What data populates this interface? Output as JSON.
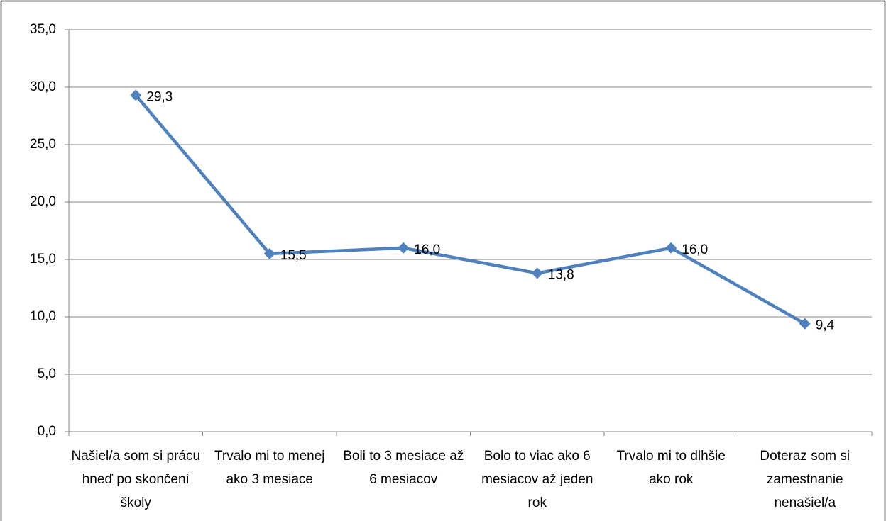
{
  "chart_data": {
    "type": "line",
    "categories": [
      "Našiel/a som si prácu hneď po skončení školy",
      "Trvalo mi to menej ako 3 mesiace",
      "Boli to 3 mesiace až 6 mesiacov",
      "Bolo to viac ako 6 mesiacov až jeden rok",
      "Trvalo mi to dlhšie ako rok",
      "Doteraz som si zamestnanie nenašiel/a"
    ],
    "values": [
      29.3,
      15.5,
      16.0,
      13.8,
      16.0,
      9.4
    ],
    "value_labels": [
      "29,3",
      "15,5",
      "16,0",
      "13,8",
      "16,0",
      "9,4"
    ],
    "color": "#4f81bd",
    "ylim": [
      0,
      35
    ],
    "yticks": [
      {
        "value": 0,
        "label": "0,0"
      },
      {
        "value": 5,
        "label": "5,0"
      },
      {
        "value": 10,
        "label": "10,0"
      },
      {
        "value": 15,
        "label": "15,0"
      },
      {
        "value": 20,
        "label": "20,0"
      },
      {
        "value": 25,
        "label": "25,0"
      },
      {
        "value": 30,
        "label": "30,0"
      },
      {
        "value": 35,
        "label": "35,0"
      }
    ],
    "grid": true
  }
}
